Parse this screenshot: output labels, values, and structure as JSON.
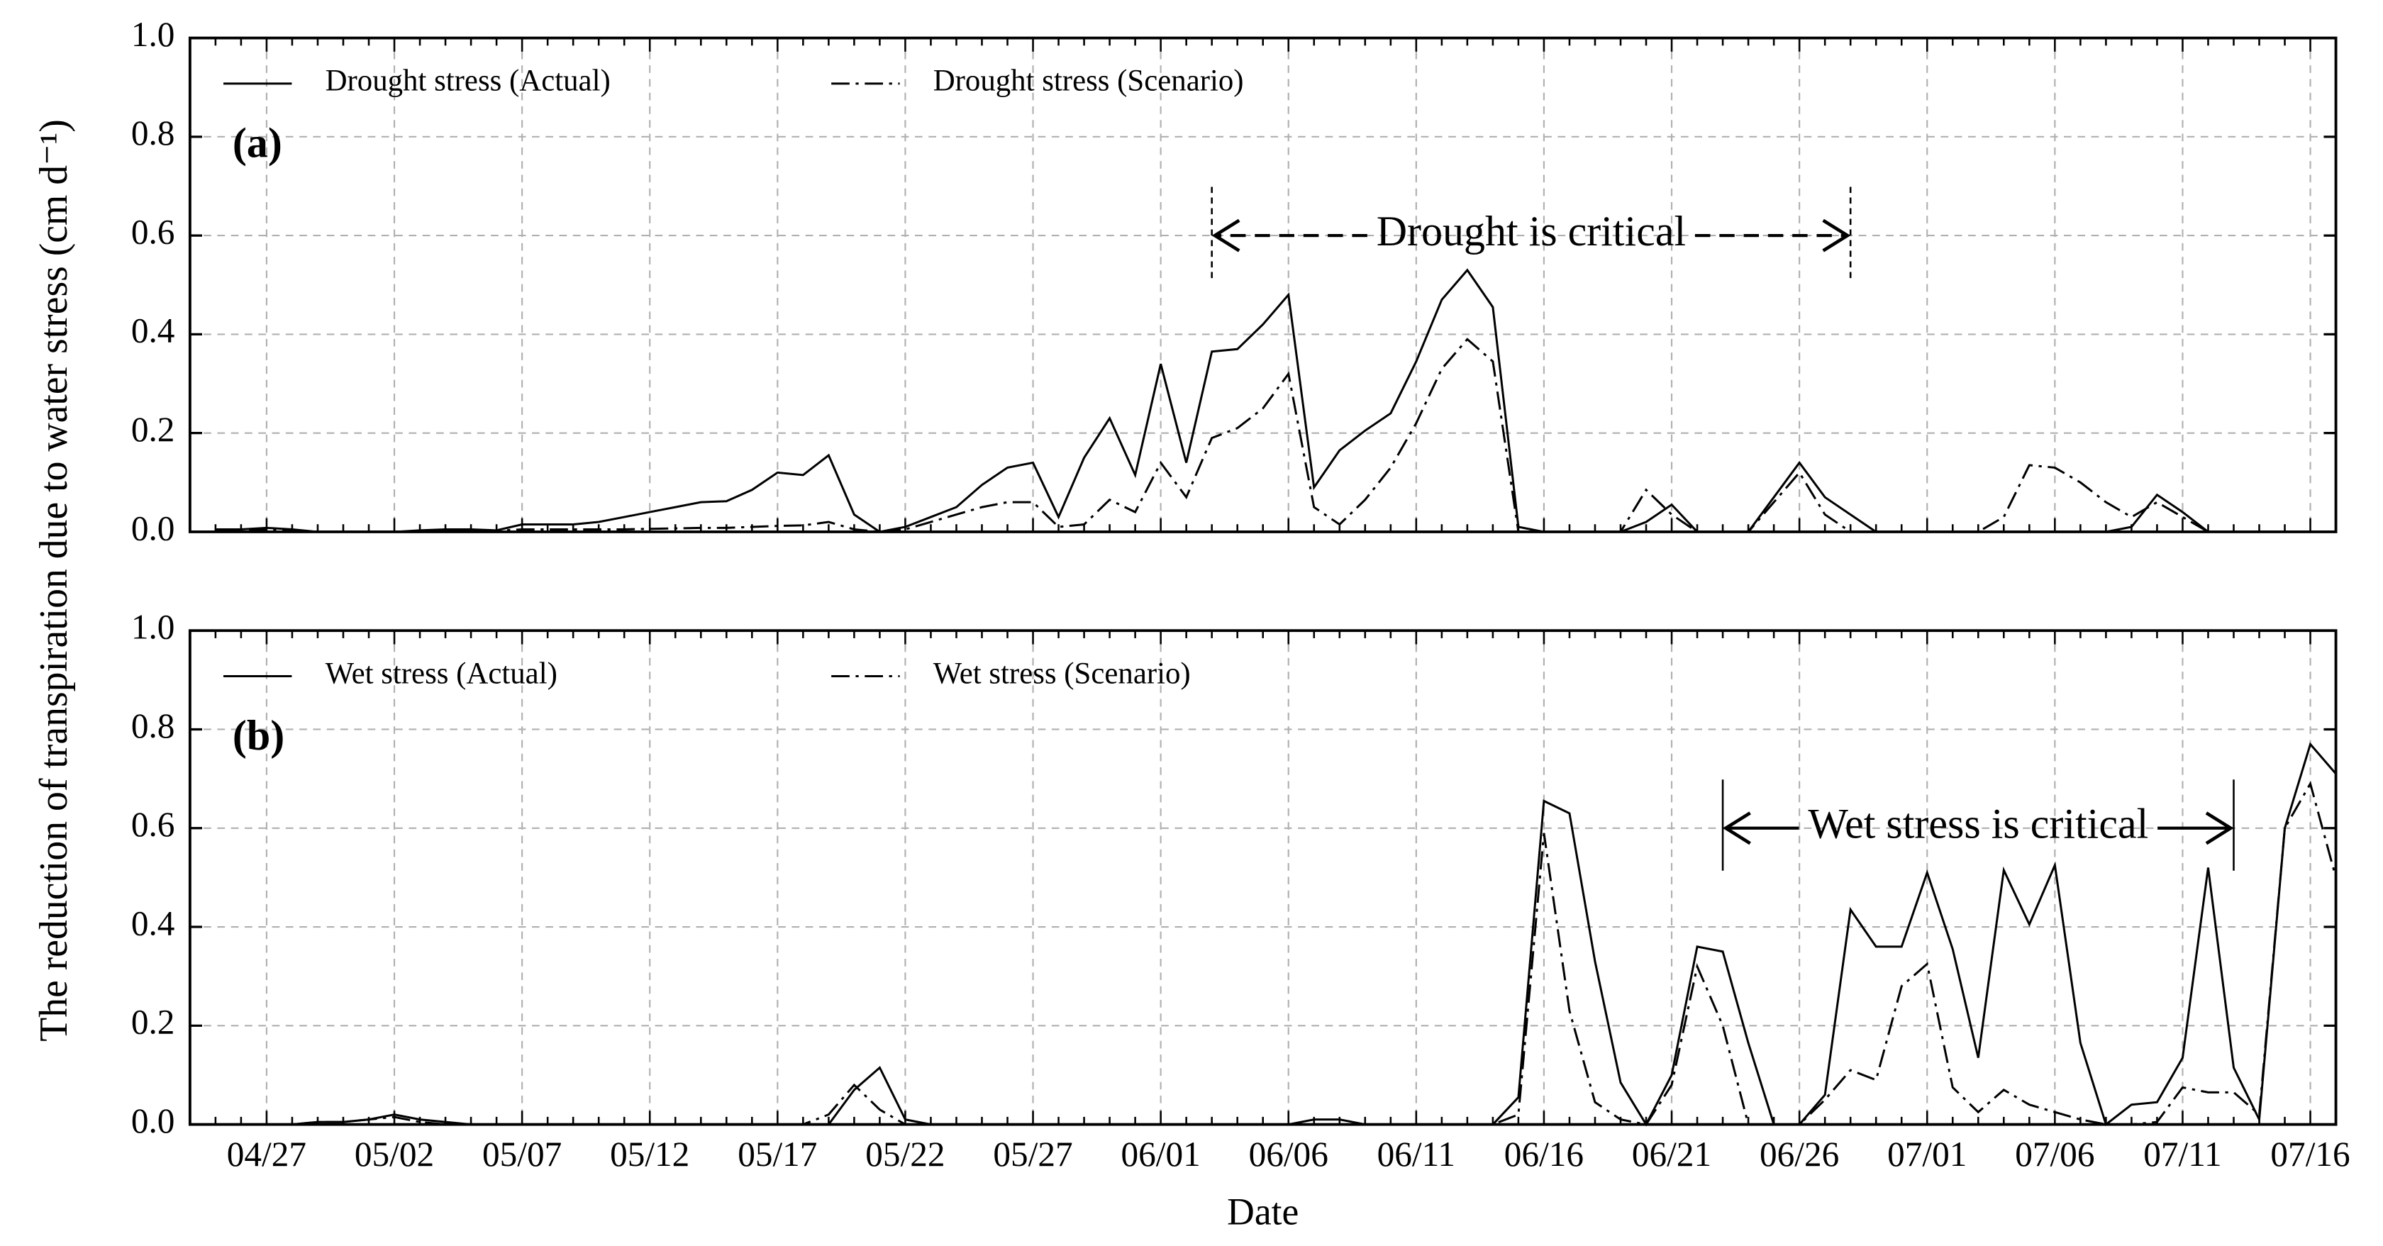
{
  "chart_data": [
    {
      "type": "line",
      "panel_label": "(a)",
      "annotation": "Drought is critical",
      "ylabel": "The reduction of transpiration due to water stress (cm d⁻¹)",
      "ylim": [
        0,
        1
      ],
      "yticks": [
        {
          "value": 0,
          "label": "0.0"
        },
        0.2,
        0.4,
        0.6,
        0.8,
        {
          "value": 1,
          "label": "1.0"
        }
      ],
      "grid": true,
      "legend": "upper left",
      "series": [
        {
          "name": "Drought stress (Actual)",
          "color": "#000000",
          "dash": "solid",
          "values": [
            null,
            0.005,
            0.005,
            0.008,
            0.005,
            0,
            0,
            0,
            0,
            0.003,
            0.005,
            0.005,
            0.003,
            0.015,
            0.015,
            0.015,
            0.02,
            0.03,
            0.04,
            0.05,
            0.06,
            0.062,
            0.085,
            0.12,
            0.115,
            0.155,
            0.035,
            0,
            0.01,
            0.03,
            0.05,
            0.095,
            0.13,
            0.14,
            0.03,
            0.15,
            0.23,
            0.115,
            0.34,
            0.14,
            0.365,
            0.37,
            0.42,
            0.48,
            0.09,
            0.165,
            0.205,
            0.24,
            0.345,
            0.47,
            0.53,
            0.455,
            0.01,
            0,
            0,
            0,
            0,
            0.02,
            0.055,
            0,
            0,
            0,
            0.07,
            0.14,
            0.07,
            0.035,
            0,
            0,
            0,
            0,
            0,
            0,
            0,
            0,
            0,
            0,
            0.01,
            0.075,
            0.04,
            0,
            0,
            0,
            0,
            0,
            0
          ]
        },
        {
          "name": "Drought stress (Scenario)",
          "color": "#000000",
          "dash": "dashdot",
          "values": [
            null,
            0.003,
            0.003,
            0.005,
            0.003,
            0,
            0,
            0,
            0,
            0.002,
            0.003,
            0.003,
            0.002,
            0.005,
            0.005,
            0.005,
            0.005,
            0.005,
            0.006,
            0.007,
            0.008,
            0.008,
            0.01,
            0.012,
            0.013,
            0.02,
            0.005,
            0,
            0.005,
            0.02,
            0.035,
            0.05,
            0.06,
            0.06,
            0.01,
            0.015,
            0.065,
            0.04,
            0.14,
            0.07,
            0.19,
            0.21,
            0.25,
            0.32,
            0.05,
            0.015,
            0.065,
            0.13,
            0.22,
            0.33,
            0.39,
            0.345,
            0,
            0,
            0,
            0,
            0,
            0.085,
            0.035,
            0,
            0,
            0,
            0.06,
            0.12,
            0.035,
            0,
            0,
            0,
            0,
            0,
            0,
            0.03,
            0.135,
            0.13,
            0.1,
            0.06,
            0.03,
            0.06,
            0.03,
            0,
            0,
            0,
            0,
            0,
            0
          ]
        }
      ]
    },
    {
      "type": "line",
      "panel_label": "(b)",
      "annotation": "Wet stress is critical",
      "xlabel": "Date",
      "categories": [
        null,
        null,
        null,
        "04/27",
        null,
        null,
        null,
        null,
        "05/02",
        null,
        null,
        null,
        null,
        "05/07",
        null,
        null,
        null,
        null,
        "05/12",
        null,
        null,
        null,
        null,
        "05/17",
        null,
        null,
        null,
        null,
        "05/22",
        null,
        null,
        null,
        null,
        "05/27",
        null,
        null,
        null,
        null,
        "06/01",
        null,
        null,
        null,
        null,
        "06/06",
        null,
        null,
        null,
        null,
        "06/11",
        null,
        null,
        null,
        null,
        "06/16",
        null,
        null,
        null,
        null,
        "06/21",
        null,
        null,
        null,
        null,
        "06/26",
        null,
        null,
        null,
        null,
        "07/01",
        null,
        null,
        null,
        null,
        "07/06",
        null,
        null,
        null,
        null,
        "07/11",
        null,
        null,
        null,
        null,
        "07/16",
        null
      ],
      "ylim": [
        0,
        1
      ],
      "yticks": [
        {
          "value": 0,
          "label": "0.0"
        },
        0.2,
        0.4,
        0.6,
        0.8,
        {
          "value": 1,
          "label": "1.0"
        }
      ],
      "grid": true,
      "legend": "upper left",
      "series": [
        {
          "name": "Wet stress (Actual)",
          "color": "#000000",
          "dash": "solid",
          "values": [
            null,
            null,
            null,
            null,
            0,
            0.005,
            0.005,
            0.01,
            0.02,
            0.01,
            0.005,
            0,
            0,
            0,
            0,
            0,
            0,
            0,
            0,
            0,
            0,
            0,
            0,
            0,
            0,
            0,
            0.07,
            0.115,
            0.01,
            0,
            0,
            0,
            0,
            0,
            0,
            0,
            0,
            0,
            0,
            0,
            0,
            0,
            0,
            0,
            0.01,
            0.01,
            0,
            0,
            0,
            0,
            0,
            0,
            0.055,
            0.655,
            0.63,
            0.33,
            0.085,
            0,
            0.1,
            0.36,
            0.35,
            0.165,
            0,
            0,
            0.06,
            0.435,
            0.36,
            0.36,
            0.51,
            0.355,
            0.135,
            0.515,
            0.405,
            0.525,
            0.165,
            0,
            0.04,
            0.045,
            0.135,
            0.52,
            0.115,
            0.01,
            0.6,
            0.77,
            0.71
          ]
        },
        {
          "name": "Wet stress (Scenario)",
          "color": "#000000",
          "dash": "dashdot",
          "values": [
            null,
            null,
            null,
            null,
            0,
            0.005,
            0.005,
            0.01,
            0.015,
            0.005,
            0,
            0,
            0,
            0,
            0,
            0,
            0,
            0,
            0,
            0,
            0,
            0,
            0,
            0,
            0,
            0.02,
            0.08,
            0.03,
            0,
            0,
            0,
            0,
            0,
            0,
            0,
            0,
            0,
            0,
            0,
            0,
            0,
            0,
            0,
            0,
            0,
            0,
            0,
            0,
            0,
            0,
            0,
            0,
            0.02,
            0.59,
            0.23,
            0.045,
            0.01,
            0,
            0.08,
            0.32,
            0.2,
            0,
            0,
            0,
            0.05,
            0.11,
            0.09,
            0.28,
            0.325,
            0.075,
            0.025,
            0.07,
            0.04,
            0.025,
            0.01,
            0,
            0,
            0.005,
            0.075,
            0.065,
            0.065,
            0.02,
            0.6,
            0.69,
            0.5
          ]
        }
      ]
    }
  ]
}
